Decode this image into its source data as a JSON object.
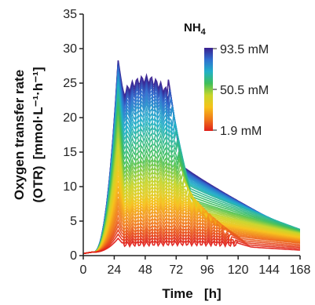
{
  "chart_data": {
    "type": "line",
    "title": "",
    "xlabel": "Time   [h]",
    "ylabel_line1": "Oxygen transfer rate",
    "ylabel_line2_left": "(OTR)",
    "ylabel_line2_right": "[mmol·L⁻¹·h⁻¹]",
    "xlim": [
      0,
      168
    ],
    "ylim": [
      0,
      35
    ],
    "xticks": [
      0,
      24,
      48,
      72,
      96,
      120,
      144,
      168
    ],
    "yticks": [
      0,
      5,
      10,
      15,
      20,
      25,
      30,
      35
    ],
    "grid": false,
    "legend": {
      "position": "top-right",
      "type": "colorbar",
      "title": "NH",
      "title_subscript": "4",
      "max_label": "93.5 mM",
      "mid_label": "50.5 mM",
      "min_label": "1.9 mM",
      "colors": [
        "#3a1f8f",
        "#2f6fd0",
        "#21b0c8",
        "#3fbf5a",
        "#c8d62a",
        "#f6c21a",
        "#f07a1a",
        "#e0201a"
      ]
    },
    "series_description_value": "",
    "series": [
      {
        "nh4_mM": 93.5,
        "peak_x": 27,
        "peak_y": 28.3,
        "plateau_y": 25.5,
        "drop_x": 66,
        "tail_y": 3.0
      },
      {
        "nh4_mM": 80.0,
        "peak_x": 27,
        "peak_y": 27.5,
        "plateau_y": 24.0,
        "drop_x": 67,
        "tail_y": 3.2
      },
      {
        "nh4_mM": 65.0,
        "peak_x": 27,
        "peak_y": 26.0,
        "plateau_y": 21.5,
        "drop_x": 69,
        "tail_y": 3.5
      },
      {
        "nh4_mM": 50.5,
        "peak_x": 27,
        "peak_y": 24.0,
        "plateau_y": 18.0,
        "drop_x": 72,
        "tail_y": 3.8
      },
      {
        "nh4_mM": 40.0,
        "peak_x": 27,
        "peak_y": 21.0,
        "plateau_y": 14.0,
        "drop_x": 74,
        "tail_y": 3.5
      },
      {
        "nh4_mM": 30.0,
        "peak_x": 27,
        "peak_y": 17.0,
        "plateau_y": 11.0,
        "drop_x": 78,
        "tail_y": 3.2
      },
      {
        "nh4_mM": 20.0,
        "peak_x": 27,
        "peak_y": 13.0,
        "plateau_y": 8.5,
        "drop_x": 85,
        "tail_y": 2.8
      },
      {
        "nh4_mM": 12.0,
        "peak_x": 27,
        "peak_y": 9.0,
        "plateau_y": 6.5,
        "drop_x": 95,
        "tail_y": 2.3
      },
      {
        "nh4_mM": 6.0,
        "peak_x": 27,
        "peak_y": 5.5,
        "plateau_y": 4.0,
        "drop_x": 110,
        "tail_y": 1.8
      },
      {
        "nh4_mM": 1.9,
        "peak_x": 27,
        "peak_y": 2.5,
        "plateau_y": 1.8,
        "drop_x": 120,
        "tail_y": 0.8
      }
    ]
  }
}
